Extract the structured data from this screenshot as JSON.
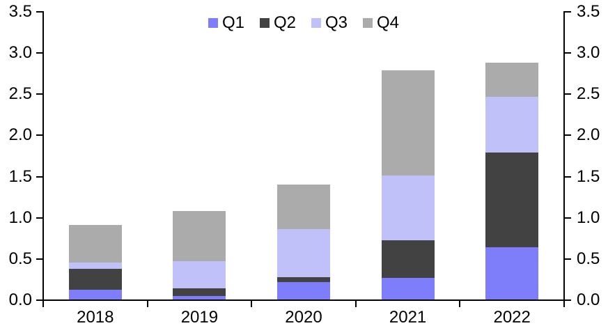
{
  "chart_data": {
    "type": "bar",
    "stacked": true,
    "title": "",
    "xlabel": "",
    "ylabel": "",
    "categories": [
      "2018",
      "2019",
      "2020",
      "2021",
      "2022"
    ],
    "series": [
      {
        "name": "Q1",
        "color": "#7e7efa",
        "pattern": "solid",
        "values": [
          0.13,
          0.05,
          0.22,
          0.27,
          0.64
        ]
      },
      {
        "name": "Q2",
        "color": "#424242",
        "pattern": "crosshatch",
        "values": [
          0.25,
          0.09,
          0.06,
          0.46,
          1.15
        ]
      },
      {
        "name": "Q3",
        "color": "#c1c1fa",
        "pattern": "solid",
        "values": [
          0.08,
          0.33,
          0.58,
          0.78,
          0.68
        ]
      },
      {
        "name": "Q4",
        "color": "#ababab",
        "pattern": "dots",
        "values": [
          0.45,
          0.61,
          0.54,
          1.28,
          0.41
        ]
      }
    ],
    "totals": [
      0.91,
      1.08,
      1.4,
      2.79,
      2.88
    ],
    "ylim": [
      0,
      3.5
    ],
    "y_tick_step": 0.5,
    "y_tick_labels": [
      "0.0",
      "0.5",
      "1.0",
      "1.5",
      "2.0",
      "2.5",
      "3.0",
      "3.5"
    ],
    "axes": {
      "left": true,
      "right": true,
      "bottom": true,
      "grid": false
    },
    "legend": {
      "position": "top-center",
      "entries": [
        "Q1",
        "Q2",
        "Q3",
        "Q4"
      ]
    },
    "axis_color": "#000000",
    "text_color": "#000000",
    "background_color": "#ffffff"
  }
}
